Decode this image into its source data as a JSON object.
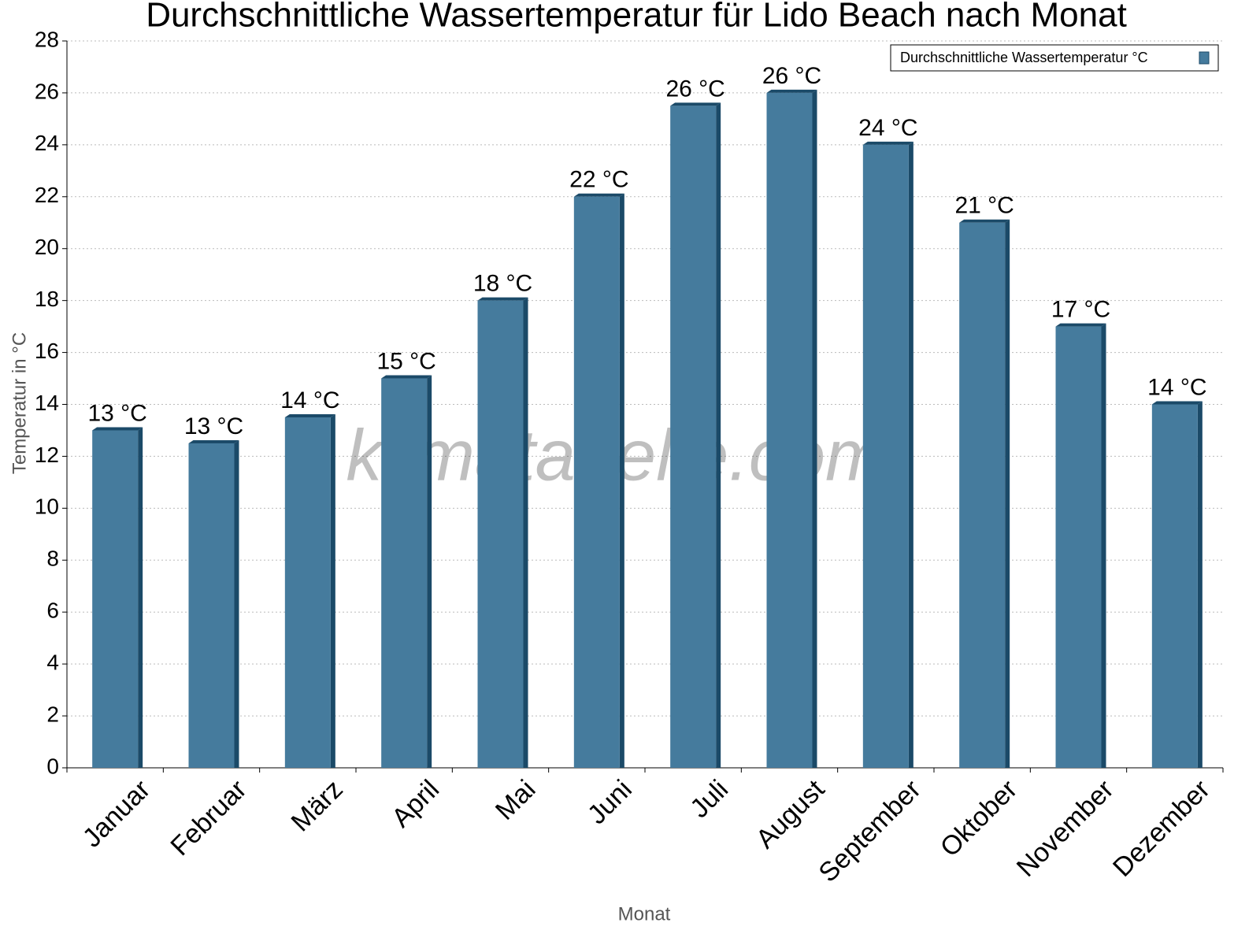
{
  "chart_data": {
    "type": "bar",
    "title": "Durchschnittliche Wassertemperatur für Lido Beach nach Monat",
    "x_label": "Monat",
    "y_label": "Temperatur in °C",
    "watermark": "klimatabelle.com",
    "categories": [
      "Januar",
      "Februar",
      "März",
      "April",
      "Mai",
      "Juni",
      "Juli",
      "August",
      "September",
      "Oktober",
      "November",
      "Dezember"
    ],
    "series": [
      {
        "name": "Durchschnittliche Wassertemperatur °C",
        "color": "#457b9d",
        "values": [
          13,
          12.5,
          13.5,
          15,
          18,
          22,
          25.5,
          26,
          24,
          21,
          17,
          14
        ],
        "value_labels": [
          "13 °C",
          "13 °C",
          "14 °C",
          "15 °C",
          "18 °C",
          "22 °C",
          "26 °C",
          "26 °C",
          "24 °C",
          "21 °C",
          "17 °C",
          "14 °C"
        ]
      }
    ],
    "ylim": [
      0,
      28
    ],
    "yticks": [
      0,
      2,
      4,
      6,
      8,
      10,
      12,
      14,
      16,
      18,
      20,
      22,
      24,
      26,
      28
    ],
    "grid": true,
    "legend": "upper right"
  }
}
